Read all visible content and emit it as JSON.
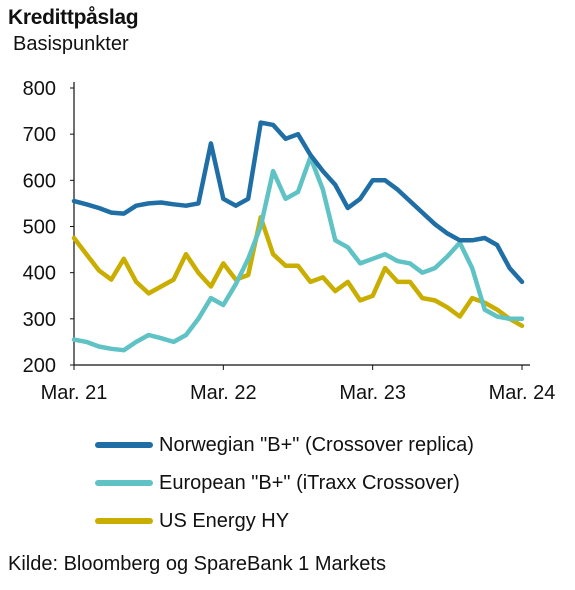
{
  "header": {
    "title": "Kredittpåslag",
    "subtitle": "Basispunkter"
  },
  "source": "Kilde: Bloomberg og SpareBank 1 Markets",
  "chart_data": {
    "type": "line",
    "title": "Kredittpåslag",
    "ylabel": "Basispunkter",
    "xlabel": "",
    "ylim": [
      200,
      800
    ],
    "xlim": [
      "2021-03",
      "2024-03"
    ],
    "y_ticks": [
      800,
      700,
      600,
      500,
      400,
      300,
      200
    ],
    "x_ticks": [
      "Mar. 21",
      "Mar. 22",
      "Mar. 23",
      "Mar. 24"
    ],
    "grid": false,
    "legend": "bottom",
    "series": [
      {
        "name": "Norwegian \"B+\" (Crossover replica)",
        "color": "#1f6fa6",
        "x": [
          "2021-03",
          "2021-04",
          "2021-05",
          "2021-06",
          "2021-07",
          "2021-08",
          "2021-09",
          "2021-10",
          "2021-11",
          "2021-12",
          "2022-01",
          "2022-02",
          "2022-03",
          "2022-04",
          "2022-05",
          "2022-06",
          "2022-07",
          "2022-08",
          "2022-09",
          "2022-10",
          "2022-11",
          "2022-12",
          "2023-01",
          "2023-02",
          "2023-03",
          "2023-04",
          "2023-05",
          "2023-06",
          "2023-07",
          "2023-08",
          "2023-09",
          "2023-10",
          "2023-11",
          "2023-12",
          "2024-01",
          "2024-02",
          "2024-03"
        ],
        "values": [
          555,
          548,
          540,
          530,
          528,
          545,
          550,
          552,
          548,
          545,
          550,
          680,
          560,
          545,
          560,
          725,
          720,
          690,
          700,
          655,
          620,
          590,
          540,
          560,
          600,
          600,
          580,
          555,
          530,
          505,
          485,
          470,
          470,
          475,
          460,
          410,
          380
        ]
      },
      {
        "name": "European \"B+\" (iTraxx Crossover)",
        "color": "#5fc2c4",
        "x": [
          "2021-03",
          "2021-04",
          "2021-05",
          "2021-06",
          "2021-07",
          "2021-08",
          "2021-09",
          "2021-10",
          "2021-11",
          "2021-12",
          "2022-01",
          "2022-02",
          "2022-03",
          "2022-04",
          "2022-05",
          "2022-06",
          "2022-07",
          "2022-08",
          "2022-09",
          "2022-10",
          "2022-11",
          "2022-12",
          "2023-01",
          "2023-02",
          "2023-03",
          "2023-04",
          "2023-05",
          "2023-06",
          "2023-07",
          "2023-08",
          "2023-09",
          "2023-10",
          "2023-11",
          "2023-12",
          "2024-01",
          "2024-02",
          "2024-03"
        ],
        "values": [
          255,
          250,
          240,
          235,
          232,
          250,
          265,
          258,
          250,
          265,
          300,
          345,
          330,
          375,
          430,
          500,
          620,
          560,
          575,
          650,
          580,
          470,
          455,
          420,
          430,
          440,
          425,
          420,
          400,
          410,
          435,
          465,
          410,
          320,
          305,
          300,
          300
        ]
      },
      {
        "name": "US Energy HY",
        "color": "#c9ae00",
        "x": [
          "2021-03",
          "2021-04",
          "2021-05",
          "2021-06",
          "2021-07",
          "2021-08",
          "2021-09",
          "2021-10",
          "2021-11",
          "2021-12",
          "2022-01",
          "2022-02",
          "2022-03",
          "2022-04",
          "2022-05",
          "2022-06",
          "2022-07",
          "2022-08",
          "2022-09",
          "2022-10",
          "2022-11",
          "2022-12",
          "2023-01",
          "2023-02",
          "2023-03",
          "2023-04",
          "2023-05",
          "2023-06",
          "2023-07",
          "2023-08",
          "2023-09",
          "2023-10",
          "2023-11",
          "2023-12",
          "2024-01",
          "2024-02",
          "2024-03"
        ],
        "values": [
          475,
          440,
          405,
          385,
          430,
          380,
          355,
          370,
          385,
          440,
          400,
          370,
          420,
          385,
          395,
          520,
          440,
          415,
          415,
          380,
          390,
          360,
          380,
          340,
          350,
          410,
          380,
          380,
          345,
          340,
          325,
          305,
          345,
          335,
          320,
          300,
          285
        ]
      }
    ]
  }
}
